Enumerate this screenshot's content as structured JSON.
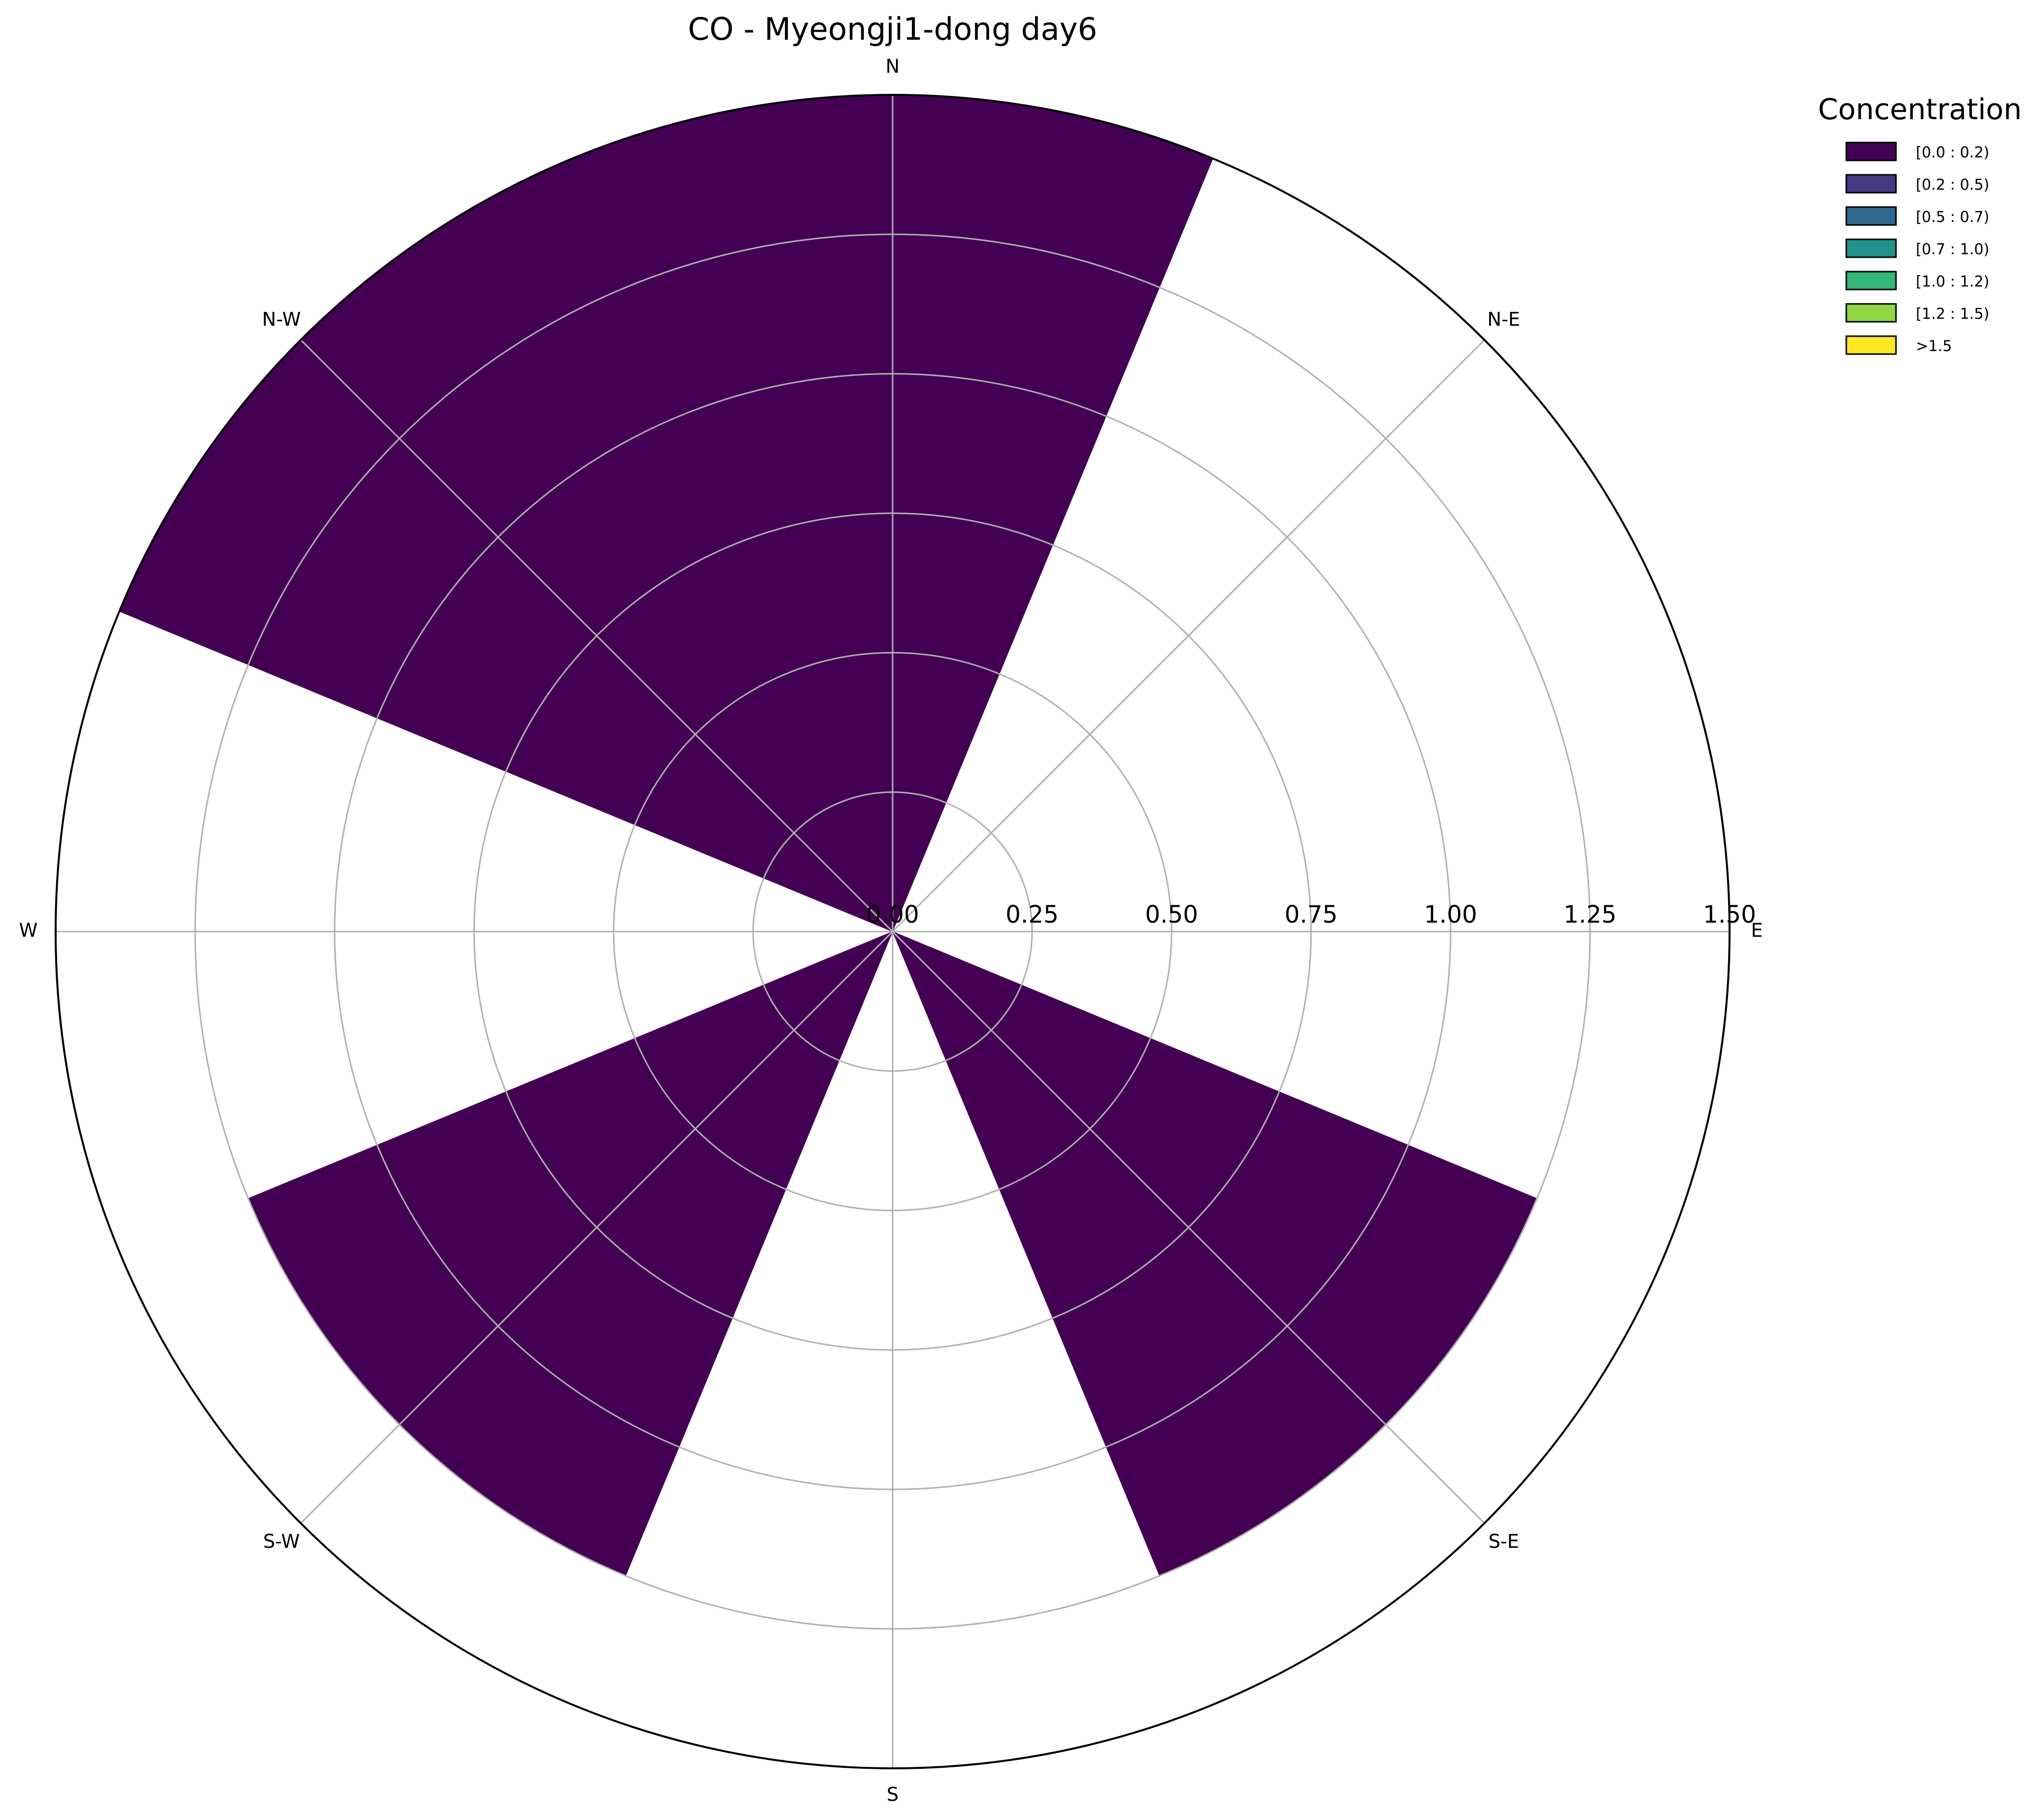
{
  "chart_data": {
    "type": "polar-bar",
    "title": "CO - Myeongji1-dong day6",
    "directions": [
      "N",
      "N-E",
      "E",
      "S-E",
      "S",
      "S-W",
      "W",
      "N-W"
    ],
    "sector_width_deg": 45,
    "rlim": [
      0,
      1.5
    ],
    "rticks": [
      0.0,
      0.25,
      0.5,
      0.75,
      1.0,
      1.25,
      1.5
    ],
    "rtick_labels": [
      "0.00",
      "0.25",
      "0.50",
      "0.75",
      "1.00",
      "1.25",
      "1.50"
    ],
    "grid": true,
    "series": [
      {
        "name": "[0.0 : 0.2)",
        "color": "#440154",
        "values": [
          {
            "direction": "N",
            "value": 1.5
          },
          {
            "direction": "N-E",
            "value": 0.0
          },
          {
            "direction": "E",
            "value": 0.0
          },
          {
            "direction": "S-E",
            "value": 1.25
          },
          {
            "direction": "S",
            "value": 0.0
          },
          {
            "direction": "S-W",
            "value": 1.25
          },
          {
            "direction": "W",
            "value": 0.0
          },
          {
            "direction": "N-W",
            "value": 1.5
          }
        ]
      }
    ],
    "legend": {
      "title": "Concentration",
      "placement": "outside-top-right",
      "entries": [
        {
          "label": "[0.0 : 0.2)",
          "color": "#440154"
        },
        {
          "label": "[0.2 : 0.5)",
          "color": "#443983"
        },
        {
          "label": "[0.5 : 0.7)",
          "color": "#31688e"
        },
        {
          "label": "[0.7 : 1.0)",
          "color": "#21918c"
        },
        {
          "label": "[1.0 : 1.2)",
          "color": "#35b779"
        },
        {
          "label": "[1.2 : 1.5)",
          "color": "#90d743"
        },
        {
          "label": ">1.5",
          "color": "#fde725"
        }
      ]
    }
  }
}
